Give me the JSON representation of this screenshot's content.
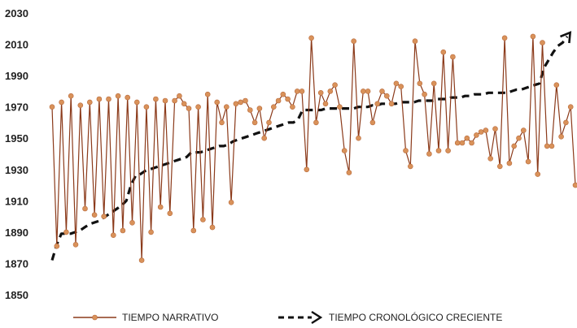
{
  "chart_data": {
    "type": "line",
    "title": "",
    "xlabel": "",
    "ylabel": "",
    "ylim": [
      1850,
      2030
    ],
    "yticks": [
      "1850",
      "1870",
      "1890",
      "1910",
      "1930",
      "1950",
      "1970",
      "1990",
      "2010",
      "2030"
    ],
    "grid": false,
    "legend_position": "bottom",
    "colors": {
      "narrative": "#8b3a1a",
      "narrative_marker": "#d9925a",
      "chrono": "#111111"
    },
    "series": [
      {
        "name": "TIEMPO NARRATIVO",
        "style": "line-with-markers",
        "values": [
          1970,
          1881,
          1973,
          1890,
          1977,
          1882,
          1971,
          1905,
          1973,
          1901,
          1975,
          1900,
          1975,
          1888,
          1977,
          1891,
          1976,
          1896,
          1973,
          1872,
          1970,
          1890,
          1975,
          1906,
          1974,
          1902,
          1974,
          1977,
          1972,
          1969,
          1891,
          1970,
          1898,
          1978,
          1893,
          1973,
          1960,
          1970,
          1909,
          1972,
          1973,
          1974,
          1968,
          1960,
          1969,
          1950,
          1960,
          1970,
          1974,
          1978,
          1975,
          1970,
          1980,
          1980,
          1930,
          2014,
          1960,
          1979,
          1972,
          1980,
          1984,
          1970,
          1942,
          1928,
          2012,
          1950,
          1980,
          1980,
          1960,
          1972,
          1980,
          1977,
          1972,
          1985,
          1983,
          1942,
          1932,
          2012,
          1985,
          1978,
          1940,
          1985,
          1942,
          2005,
          1942,
          2002,
          1947,
          1947,
          1950,
          1947,
          1952,
          1954,
          1955,
          1937,
          1956,
          1932,
          2014,
          1934,
          1945,
          1950,
          1955,
          1935,
          2015,
          1927,
          2011,
          1945,
          1945,
          1984,
          1951,
          1960,
          1970,
          1920
        ]
      },
      {
        "name": "TIEMPO CRONOLÓGICO CRECIENTE",
        "style": "dashed-arrow",
        "values": [
          1872,
          1882,
          1889,
          1889,
          1889,
          1890,
          1891,
          1893,
          1895,
          1896,
          1897,
          1899,
          1901,
          1903,
          1905,
          1907,
          1910,
          1920,
          1926,
          1927,
          1929,
          1930,
          1931,
          1932,
          1933,
          1934,
          1935,
          1936,
          1937,
          1938,
          1941,
          1941,
          1941,
          1942,
          1943,
          1944,
          1945,
          1945,
          1946,
          1948,
          1949,
          1950,
          1951,
          1952,
          1953,
          1954,
          1955,
          1956,
          1957,
          1958,
          1959,
          1960,
          1960,
          1962,
          1968,
          1968,
          1968,
          1968,
          1968,
          1969,
          1969,
          1969,
          1969,
          1969,
          1969,
          1969,
          1970,
          1970,
          1970,
          1971,
          1971,
          1972,
          1972,
          1972,
          1972,
          1973,
          1973,
          1973,
          1973,
          1974,
          1974,
          1974,
          1974,
          1975,
          1975,
          1975,
          1976,
          1976,
          1976,
          1977,
          1977,
          1978,
          1978,
          1978,
          1979,
          1979,
          1979,
          1979,
          1979,
          1980,
          1981,
          1981,
          1982,
          1983,
          1984,
          1985,
          1995,
          2000,
          2005,
          2009,
          2011,
          2015
        ]
      }
    ]
  }
}
